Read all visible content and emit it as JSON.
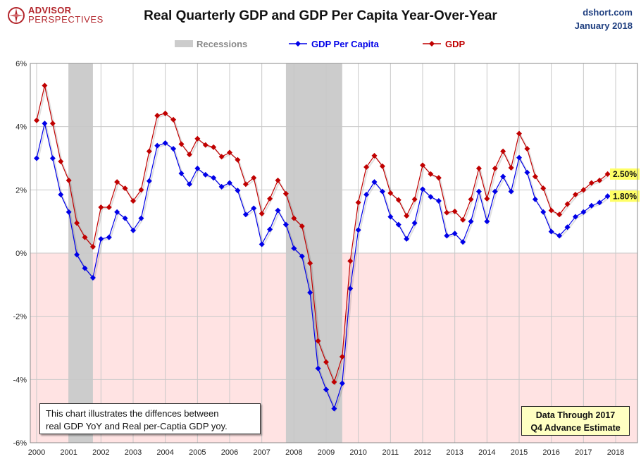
{
  "header": {
    "title": "Real Quarterly GDP and GDP Per Capita Year-Over-Year",
    "logo_line1": "ADVISOR",
    "logo_line2": "PERSPECTIVES",
    "source_line1": "dshort.com",
    "source_line2": "January 2018"
  },
  "colors": {
    "gdp": "#c00000",
    "per_capita": "#0000e8",
    "recession": "#cccccc",
    "negative_zone": "#ffe3e3",
    "label_highlight": "#ffff66"
  },
  "notes": {
    "description_line1": "This chart illustrates the diffences between",
    "description_line2": "real GDP YoY and Real per-Captia GDP yoy.",
    "through_line1": "Data Through 2017",
    "through_line2": "Q4 Advance Estimate"
  },
  "chart_data": {
    "type": "line",
    "title": "Real Quarterly GDP and GDP Per Capita Year-Over-Year",
    "x_start": 2000.0,
    "x_step": 0.25,
    "xlim": [
      2000,
      2018
    ],
    "ylim": [
      -6,
      6
    ],
    "y_ticks": [
      "6%",
      "4%",
      "2%",
      "0%",
      "-2%",
      "-4%",
      "-6%"
    ],
    "x_ticks": [
      "2000",
      "2001",
      "2002",
      "2003",
      "2004",
      "2005",
      "2006",
      "2007",
      "2008",
      "2009",
      "2010",
      "2011",
      "2012",
      "2013",
      "2014",
      "2015",
      "2016",
      "2017",
      "2018"
    ],
    "grid": true,
    "legend_position": "top-center",
    "recession_label": "Recessions",
    "recessions": [
      [
        2001.0,
        2001.75
      ],
      [
        2007.75,
        2009.5
      ]
    ],
    "series": [
      {
        "name": "GDP Per Capita",
        "color": "#0000e8",
        "end_label": "1.80%",
        "values": [
          3.0,
          4.1,
          3.0,
          1.85,
          1.3,
          -0.05,
          -0.48,
          -0.78,
          0.45,
          0.5,
          1.3,
          1.1,
          0.72,
          1.1,
          2.28,
          3.4,
          3.48,
          3.3,
          2.52,
          2.18,
          2.68,
          2.48,
          2.38,
          2.1,
          2.22,
          1.98,
          1.22,
          1.42,
          0.28,
          0.75,
          1.35,
          0.9,
          0.15,
          -0.1,
          -1.25,
          -3.65,
          -4.32,
          -4.92,
          -4.12,
          -1.12,
          0.73,
          1.85,
          2.25,
          1.95,
          1.15,
          0.9,
          0.45,
          0.95,
          2.02,
          1.78,
          1.65,
          0.55,
          0.62,
          0.35,
          1.0,
          1.95,
          1.0,
          1.95,
          2.42,
          1.95,
          3.02,
          2.55,
          1.7,
          1.3,
          0.68,
          0.55,
          0.82,
          1.15,
          1.3,
          1.5,
          1.6,
          1.8
        ]
      },
      {
        "name": "GDP",
        "color": "#c00000",
        "end_label": "2.50%",
        "values": [
          4.2,
          5.3,
          4.1,
          2.9,
          2.3,
          0.95,
          0.5,
          0.2,
          1.45,
          1.45,
          2.25,
          2.05,
          1.65,
          2.0,
          3.22,
          4.35,
          4.42,
          4.22,
          3.45,
          3.12,
          3.62,
          3.42,
          3.35,
          3.05,
          3.18,
          2.95,
          2.18,
          2.38,
          1.25,
          1.72,
          2.3,
          1.88,
          1.1,
          0.85,
          -0.32,
          -2.78,
          -3.45,
          -4.08,
          -3.28,
          -0.25,
          1.6,
          2.72,
          3.08,
          2.75,
          1.9,
          1.68,
          1.18,
          1.7,
          2.78,
          2.5,
          2.38,
          1.28,
          1.32,
          1.05,
          1.7,
          2.68,
          1.72,
          2.68,
          3.22,
          2.7,
          3.78,
          3.3,
          2.42,
          2.05,
          1.35,
          1.22,
          1.55,
          1.85,
          2.0,
          2.22,
          2.3,
          2.5
        ]
      }
    ]
  }
}
